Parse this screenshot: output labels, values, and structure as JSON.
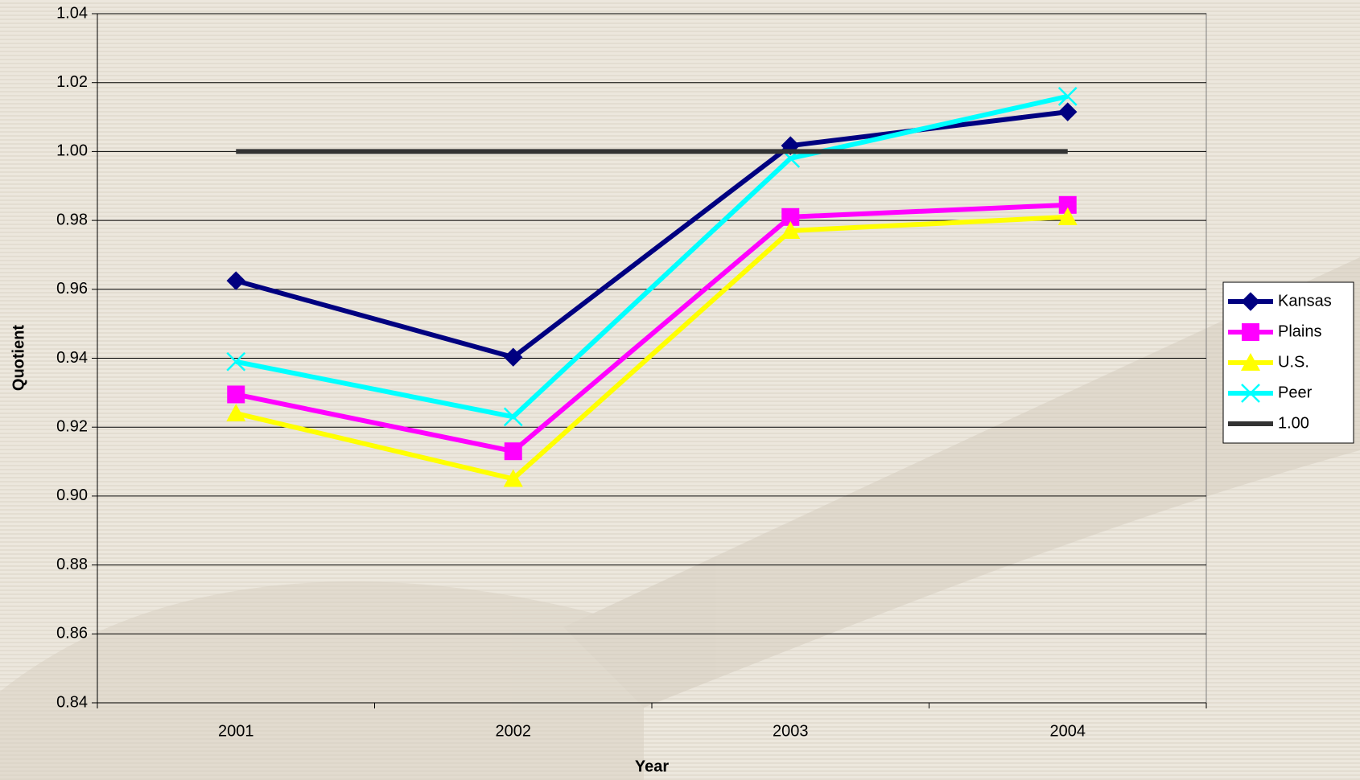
{
  "chart_data": {
    "type": "line",
    "x_label": "Year",
    "y_label": "Quotient",
    "categories": [
      "2001",
      "2002",
      "2003",
      "2004"
    ],
    "series": [
      {
        "name": "Kansas",
        "color": "#000080",
        "marker": "diamond",
        "values": [
          0.9625,
          0.9403,
          1.0017,
          1.0115
        ]
      },
      {
        "name": "Plains",
        "color": "#ff00ff",
        "marker": "square",
        "values": [
          0.9295,
          0.913,
          0.981,
          0.9845
        ]
      },
      {
        "name": "U.S.",
        "color": "#ffff00",
        "marker": "triangle",
        "values": [
          0.924,
          0.905,
          0.977,
          0.981
        ]
      },
      {
        "name": "Peer",
        "color": "#00ffff",
        "marker": "x",
        "values": [
          0.939,
          0.923,
          0.998,
          1.016
        ]
      },
      {
        "name": "1.00",
        "color": "#333333",
        "marker": "none",
        "values": [
          1,
          1,
          1,
          1
        ]
      }
    ],
    "ylim": [
      0.84,
      1.04
    ],
    "yticks": [
      0.84,
      0.86,
      0.88,
      {
        "value": 0.9,
        "label": "0.90"
      },
      0.92,
      0.94,
      0.96,
      0.98,
      {
        "value": 1,
        "label": "1.00"
      },
      1.02,
      1.04
    ],
    "grid": true,
    "legend": "right"
  }
}
